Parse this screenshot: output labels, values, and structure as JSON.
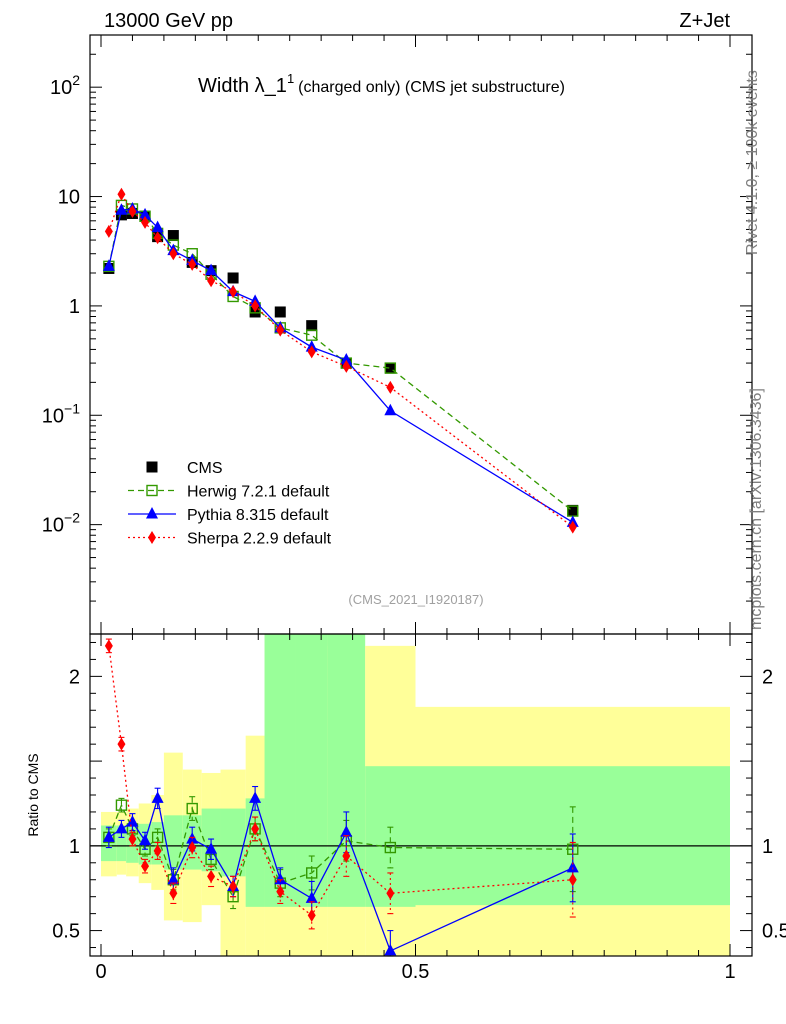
{
  "header": {
    "left": "13000 GeV pp",
    "right": "Z+Jet"
  },
  "side": {
    "rivet": "Rivet 4.1.0, ≥ 100k events",
    "mcplots": "mcplots.cern.ch [arXiv:1306.3436]"
  },
  "colors": {
    "cms": "#000000",
    "herwig": "#339900",
    "pythia": "#0000ff",
    "sherpa": "#ff0000",
    "band_inner": "#99ff99",
    "band_outer": "#ffff99"
  },
  "chart_data": {
    "type": "scatter",
    "title": "Width λ_1",
    "title_sup": "1",
    "subtitle": "(charged only) (CMS jet substructure)",
    "analysis_id": "(CMS_2021_I1920187)",
    "xlabel": "",
    "ylabel": "",
    "ratio_ylabel": "Ratio to CMS",
    "xlim": [
      0,
      1
    ],
    "ylim_main": [
      0.001,
      300
    ],
    "ylim_ratio": [
      0.35,
      2.25
    ],
    "main_y_ticks": [
      {
        "value": 100,
        "base": "10",
        "exp": "2"
      },
      {
        "value": 10,
        "base": "10",
        "exp": ""
      },
      {
        "value": 1,
        "base": "1",
        "exp": ""
      },
      {
        "value": 0.1,
        "base": "10",
        "exp": "−1"
      },
      {
        "value": 0.01,
        "base": "10",
        "exp": "−2"
      }
    ],
    "ratio_y_ticks": [
      {
        "value": 0.5,
        "label": "0.5"
      },
      {
        "value": 1,
        "label": "1"
      },
      {
        "value": 2,
        "label": "2"
      }
    ],
    "x_ticks": [
      {
        "value": 0,
        "label": "0"
      },
      {
        "value": 0.5,
        "label": "0.5"
      },
      {
        "value": 1,
        "label": "1"
      }
    ],
    "legend": [
      "CMS",
      "Herwig 7.2.1 default",
      "Pythia 8.315 default",
      "Sherpa 2.2.9 default"
    ],
    "bins": [
      [
        0.0,
        0.025
      ],
      [
        0.025,
        0.04
      ],
      [
        0.04,
        0.06
      ],
      [
        0.06,
        0.08
      ],
      [
        0.08,
        0.1
      ],
      [
        0.1,
        0.13
      ],
      [
        0.13,
        0.16
      ],
      [
        0.16,
        0.19
      ],
      [
        0.19,
        0.23
      ],
      [
        0.23,
        0.26
      ],
      [
        0.26,
        0.31
      ],
      [
        0.31,
        0.36
      ],
      [
        0.36,
        0.42
      ],
      [
        0.42,
        0.5
      ],
      [
        0.5,
        1.0
      ]
    ],
    "x": [
      0.0125,
      0.0325,
      0.05,
      0.07,
      0.09,
      0.115,
      0.145,
      0.175,
      0.21,
      0.245,
      0.285,
      0.335,
      0.39,
      0.46,
      0.75
    ],
    "band_inner": [
      [
        0.91,
        1.12
      ],
      [
        0.91,
        1.12
      ],
      [
        0.9,
        1.13
      ],
      [
        0.89,
        1.13
      ],
      [
        0.89,
        1.14
      ],
      [
        0.86,
        1.18
      ],
      [
        0.86,
        1.18
      ],
      [
        0.85,
        1.22
      ],
      [
        0.82,
        1.22
      ],
      [
        0.64,
        1.28
      ],
      [
        0.64,
        2.25
      ],
      [
        0.64,
        2.25
      ],
      [
        0.64,
        2.25
      ],
      [
        0.64,
        1.47
      ],
      [
        0.65,
        1.47
      ]
    ],
    "band_outer": [
      [
        0.82,
        1.2
      ],
      [
        0.83,
        1.2
      ],
      [
        0.82,
        1.22
      ],
      [
        0.78,
        1.25
      ],
      [
        0.74,
        1.3
      ],
      [
        0.56,
        1.55
      ],
      [
        0.55,
        1.45
      ],
      [
        0.65,
        1.43
      ],
      [
        0.35,
        1.45
      ],
      [
        0.35,
        1.65
      ],
      [
        0.35,
        2.25
      ],
      [
        0.35,
        2.25
      ],
      [
        0.35,
        2.18
      ],
      [
        0.35,
        2.18
      ],
      [
        0.35,
        1.82
      ]
    ],
    "series": [
      {
        "name": "CMS",
        "color": "#000000",
        "marker": "square-filled",
        "values": [
          2.2,
          6.8,
          7.0,
          6.6,
          4.3,
          4.4,
          2.5,
          2.1,
          1.8,
          0.88,
          0.88,
          0.66,
          0.3,
          0.27,
          0.0135
        ],
        "ratio": [
          1,
          1,
          1,
          1,
          1,
          1,
          1,
          1,
          1,
          1,
          1,
          1,
          1,
          1,
          1
        ],
        "ratio_err": [
          0,
          0,
          0,
          0,
          0,
          0,
          0,
          0,
          0,
          0,
          0,
          0,
          0,
          0,
          0
        ]
      },
      {
        "name": "Herwig 7.2.1 default",
        "color": "#339900",
        "marker": "square-open",
        "dash": "6,4",
        "values": [
          2.3,
          8.3,
          7.7,
          6.6,
          4.6,
          3.6,
          3.0,
          1.95,
          1.22,
          0.96,
          0.63,
          0.54,
          0.3,
          0.27,
          0.0133
        ],
        "ratio": [
          1.05,
          1.24,
          1.1,
          0.98,
          1.05,
          0.8,
          1.22,
          0.92,
          0.7,
          1.1,
          0.78,
          0.84,
          1.03,
          0.99,
          0.98
        ],
        "ratio_err": [
          0.05,
          0.04,
          0.04,
          0.04,
          0.05,
          0.06,
          0.07,
          0.06,
          0.07,
          0.07,
          0.08,
          0.1,
          0.12,
          0.12,
          0.25
        ]
      },
      {
        "name": "Pythia 8.315 default",
        "color": "#0000ff",
        "marker": "triangle",
        "dash": "",
        "values": [
          2.3,
          7.5,
          7.7,
          6.8,
          5.2,
          3.2,
          2.6,
          2.1,
          1.35,
          1.1,
          0.63,
          0.42,
          0.32,
          0.11,
          0.0105
        ],
        "ratio": [
          1.05,
          1.1,
          1.14,
          1.03,
          1.28,
          0.8,
          1.04,
          0.98,
          0.76,
          1.28,
          0.8,
          0.69,
          1.08,
          0.38,
          0.87
        ],
        "ratio_err": [
          0.06,
          0.05,
          0.05,
          0.05,
          0.06,
          0.07,
          0.07,
          0.06,
          0.06,
          0.07,
          0.07,
          0.1,
          0.12,
          0.12,
          0.2
        ]
      },
      {
        "name": "Sherpa 2.2.9 default",
        "color": "#ff0000",
        "marker": "diamond",
        "dash": "2,3",
        "values": [
          4.8,
          10.5,
          7.3,
          5.8,
          4.2,
          3.0,
          2.4,
          1.7,
          1.35,
          1.0,
          0.6,
          0.38,
          0.28,
          0.18,
          0.0095
        ],
        "ratio": [
          2.18,
          1.6,
          1.04,
          0.88,
          0.97,
          0.72,
          0.99,
          0.82,
          0.76,
          1.1,
          0.73,
          0.59,
          0.94,
          0.72,
          0.8
        ],
        "ratio_err": [
          0.04,
          0.04,
          0.04,
          0.04,
          0.05,
          0.06,
          0.06,
          0.06,
          0.06,
          0.07,
          0.07,
          0.08,
          0.12,
          0.12,
          0.22
        ]
      }
    ]
  }
}
